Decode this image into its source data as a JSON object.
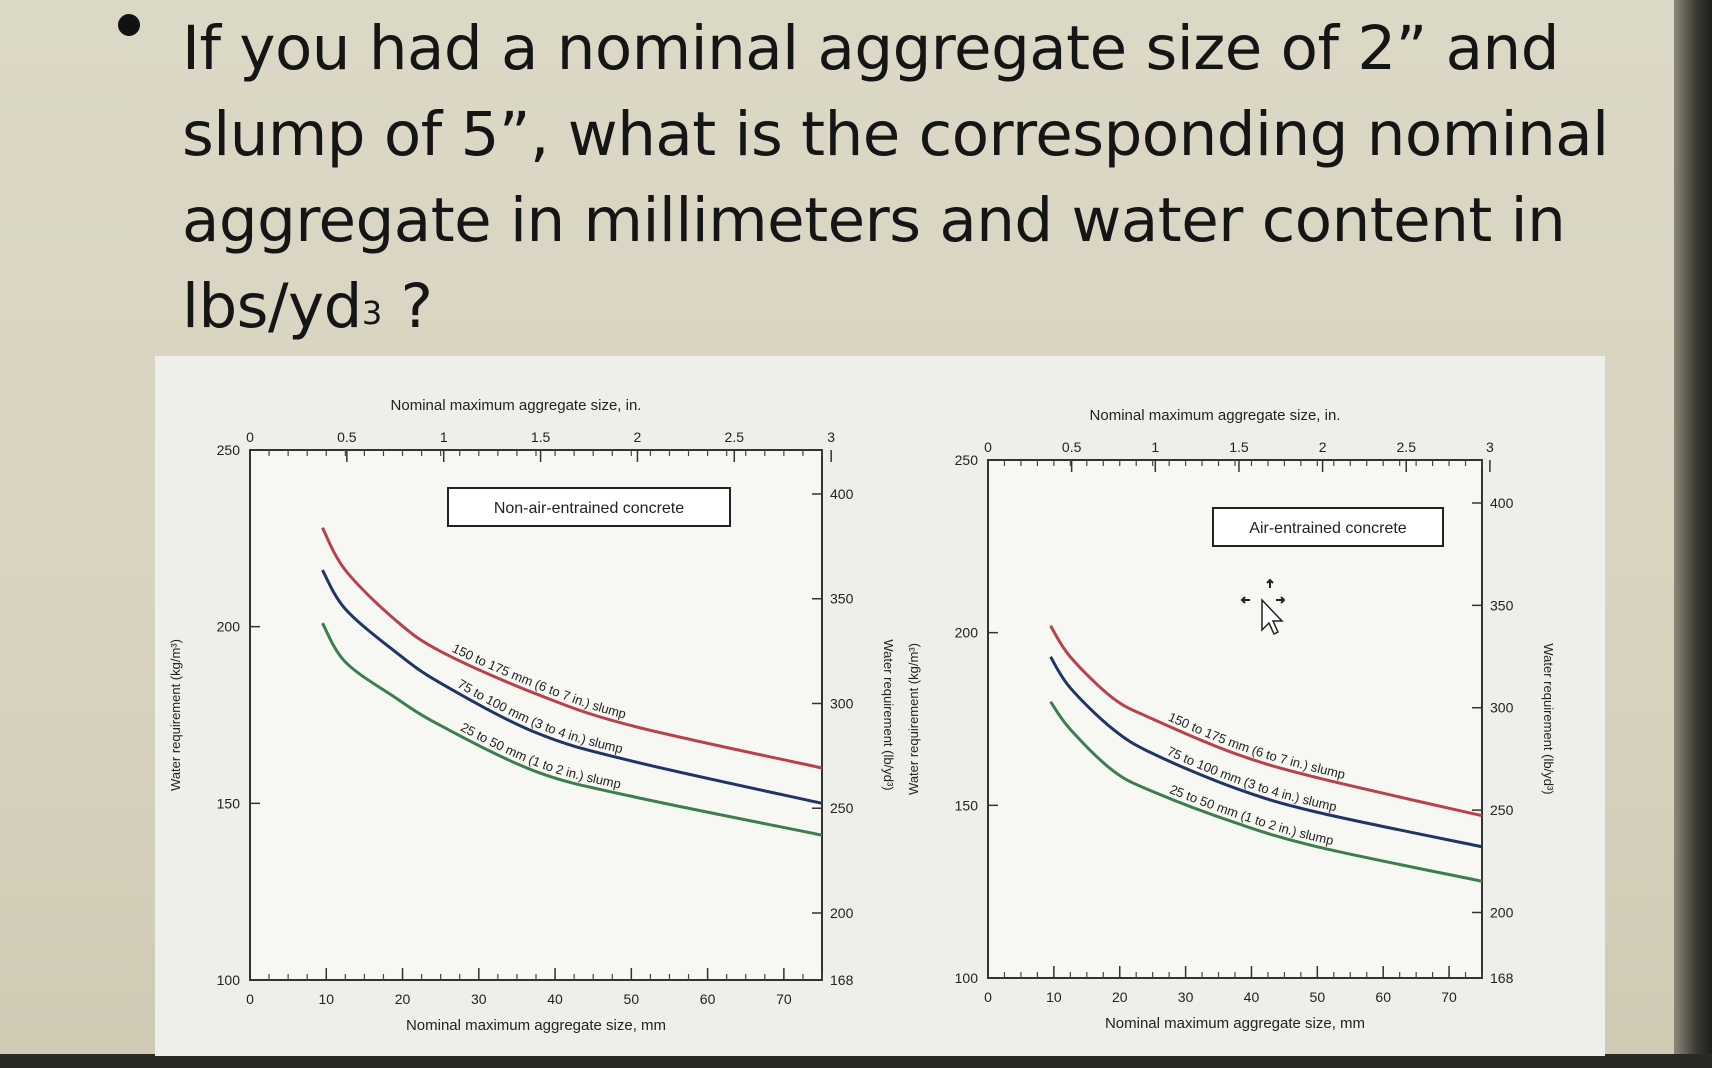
{
  "slide": {
    "question_part1": "If you had a nominal aggregate size of 2” and slump of 5”, what is the corresponding nominal aggregate in millimeters and water content in  lbs/yd",
    "question_sup": "3",
    "question_end": " ?"
  },
  "chart_data": [
    {
      "type": "line",
      "title": "Non-air-entrained concrete",
      "xlabel": "Nominal maximum aggregate size, mm",
      "x2label": "Nominal maximum aggregate size, in.",
      "ylabel": "Water requirement (kg/m³)",
      "y2label": "Water requirement (lb/yd³)",
      "xlim": [
        0,
        75
      ],
      "ylim": [
        100,
        250
      ],
      "y2lim": [
        168,
        421
      ],
      "x_ticks": [
        "0",
        "10",
        "20",
        "30",
        "40",
        "50",
        "60",
        "70"
      ],
      "x2_ticks": [
        "0",
        "0.5",
        "1",
        "1.5",
        "2",
        "2.5",
        "3"
      ],
      "y_ticks": [
        "100",
        "150",
        "200",
        "250"
      ],
      "y2_ticks": [
        "168",
        "200",
        "250",
        "300",
        "350",
        "400"
      ],
      "grid": false,
      "series": [
        {
          "name": "150 to 175 mm (6 to 7 in.) slump",
          "color": "#b8424a",
          "x": [
            9.5,
            12.5,
            19,
            25,
            37.5,
            50,
            75
          ],
          "y": [
            228,
            216,
            202,
            193,
            181,
            172,
            160
          ]
        },
        {
          "name": "75 to 100 mm (3 to 4 in.) slump",
          "color": "#1f3563",
          "x": [
            9.5,
            12.5,
            19,
            25,
            37.5,
            50,
            75
          ],
          "y": [
            216,
            205,
            193,
            184,
            170,
            162,
            150
          ]
        },
        {
          "name": "25 to 50 mm (1 to 2 in.) slump",
          "color": "#3d7e4e",
          "x": [
            9.5,
            12.5,
            19,
            25,
            37.5,
            50,
            75
          ],
          "y": [
            201,
            190,
            180,
            172,
            159,
            152,
            141
          ]
        }
      ]
    },
    {
      "type": "line",
      "title": "Air-entrained concrete",
      "xlabel": "Nominal maximum aggregate size, mm",
      "x2label": "Nominal maximum aggregate size, in.",
      "ylabel": "Water requirement (kg/m³)",
      "y2label": "Water requirement (lb/yd³)",
      "xlim": [
        0,
        75
      ],
      "ylim": [
        100,
        250
      ],
      "y2lim": [
        168,
        421
      ],
      "x_ticks": [
        "0",
        "10",
        "20",
        "30",
        "40",
        "50",
        "60",
        "70"
      ],
      "x2_ticks": [
        "0",
        "0.5",
        "1",
        "1.5",
        "2",
        "2.5",
        "3"
      ],
      "y_ticks": [
        "100",
        "150",
        "200",
        "250"
      ],
      "y2_ticks": [
        "168",
        "200",
        "250",
        "300",
        "350",
        "400"
      ],
      "grid": false,
      "series": [
        {
          "name": "150 to 175 mm (6 to 7 in.) slump",
          "color": "#b8424a",
          "x": [
            9.5,
            12.5,
            19,
            25,
            37.5,
            50,
            75
          ],
          "y": [
            202,
            193,
            181,
            175,
            165,
            158,
            147
          ]
        },
        {
          "name": "75 to 100 mm (3 to 4 in.) slump",
          "color": "#1f3563",
          "x": [
            9.5,
            12.5,
            19,
            25,
            37.5,
            50,
            75
          ],
          "y": [
            193,
            184,
            172,
            165,
            155,
            148,
            138
          ]
        },
        {
          "name": "25 to 50 mm (1 to 2 in.) slump",
          "color": "#3d7e4e",
          "x": [
            9.5,
            12.5,
            19,
            25,
            37.5,
            50,
            75
          ],
          "y": [
            180,
            172,
            160,
            154,
            145,
            138,
            128
          ]
        }
      ]
    }
  ]
}
